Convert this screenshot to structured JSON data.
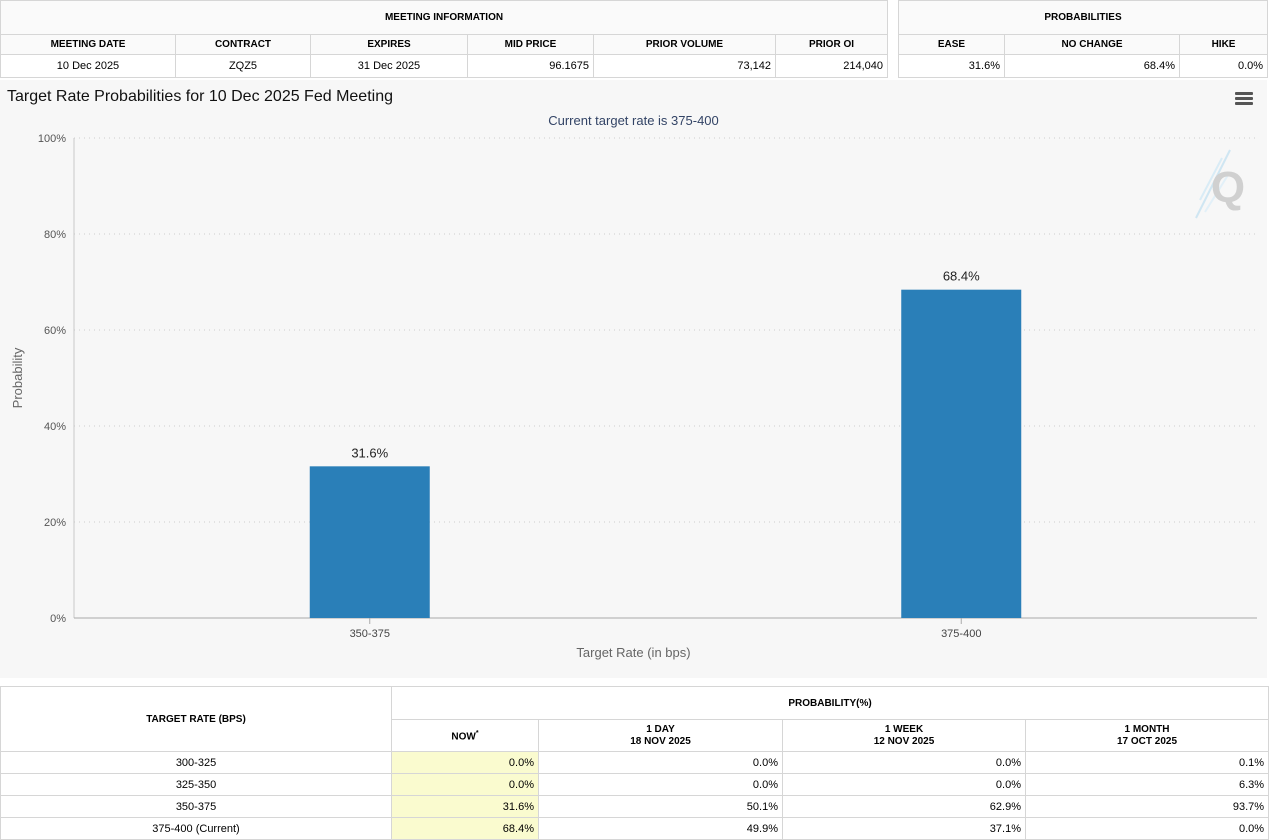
{
  "meeting_info": {
    "group_title": "MEETING INFORMATION",
    "headers": [
      "MEETING DATE",
      "CONTRACT",
      "EXPIRES",
      "MID PRICE",
      "PRIOR VOLUME",
      "PRIOR OI"
    ],
    "values": [
      "10 Dec 2025",
      "ZQZ5",
      "31 Dec 2025",
      "96.1675",
      "73,142",
      "214,040"
    ]
  },
  "probabilities": {
    "group_title": "PROBABILITIES",
    "headers": [
      "EASE",
      "NO CHANGE",
      "HIKE"
    ],
    "values": [
      "31.6%",
      "68.4%",
      "0.0%"
    ]
  },
  "chart_data": {
    "type": "bar",
    "title": "Target Rate Probabilities for 10 Dec 2025 Fed Meeting",
    "subtitle": "Current target rate is 375-400",
    "xlabel": "Target Rate (in bps)",
    "ylabel": "Probability",
    "categories": [
      "350-375",
      "375-400"
    ],
    "values": [
      31.6,
      68.4
    ],
    "data_labels": [
      "31.6%",
      "68.4%"
    ],
    "ylim": [
      0,
      100
    ],
    "yticks": [
      0,
      20,
      40,
      60,
      80,
      100
    ],
    "ytick_labels": [
      "0%",
      "20%",
      "40%",
      "60%",
      "80%",
      "100%"
    ],
    "grid": true,
    "bar_color": "#2a7fb8",
    "watermark": "Q"
  },
  "history": {
    "target_rate_header": "TARGET RATE (BPS)",
    "probability_header": "PROBABILITY(%)",
    "columns": [
      {
        "label": "NOW",
        "sup": "*",
        "date": ""
      },
      {
        "label": "1 DAY",
        "date": "18 NOV 2025"
      },
      {
        "label": "1 WEEK",
        "date": "12 NOV 2025"
      },
      {
        "label": "1 MONTH",
        "date": "17 OCT 2025"
      }
    ],
    "rows": [
      {
        "rate": "300-325",
        "values": [
          "0.0%",
          "0.0%",
          "0.0%",
          "0.1%"
        ]
      },
      {
        "rate": "325-350",
        "values": [
          "0.0%",
          "0.0%",
          "0.0%",
          "6.3%"
        ]
      },
      {
        "rate": "350-375",
        "values": [
          "31.6%",
          "50.1%",
          "62.9%",
          "93.7%"
        ]
      },
      {
        "rate": "375-400 (Current)",
        "values": [
          "68.4%",
          "49.9%",
          "37.1%",
          "0.0%"
        ]
      }
    ]
  }
}
